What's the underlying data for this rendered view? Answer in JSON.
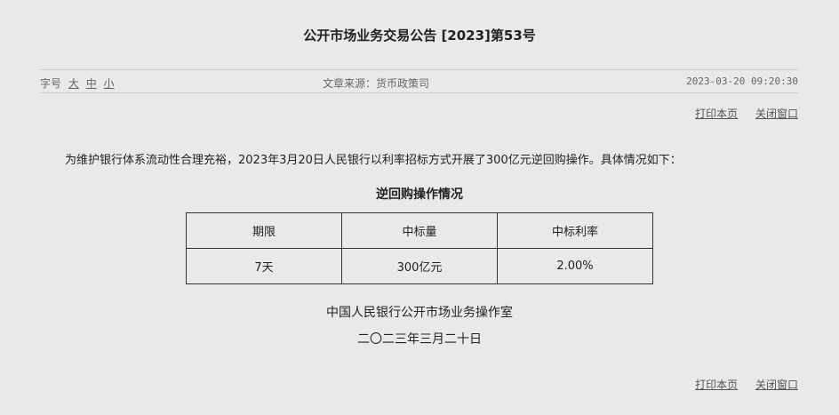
{
  "title": "公开市场业务交易公告 [2023]第53号",
  "meta": {
    "font_size_label": "字号",
    "font_sizes": [
      "大",
      "中",
      "小"
    ],
    "source": "文章来源：货币政策司",
    "datetime": "2023-03-20 09:20:30"
  },
  "links": {
    "print": "打印本页",
    "close": "关闭窗口"
  },
  "paragraph": "为维护银行体系流动性合理充裕，2023年3月20日人民银行以利率招标方式开展了300亿元逆回购操作。具体情况如下：",
  "table": {
    "title": "逆回购操作情况",
    "headers": [
      "期限",
      "中标量",
      "中标利率"
    ],
    "rows": [
      [
        "7天",
        "300亿元",
        "2.00%"
      ]
    ]
  },
  "signature": {
    "org": "中国人民银行公开市场业务操作室",
    "date": "二〇二三年三月二十日"
  }
}
